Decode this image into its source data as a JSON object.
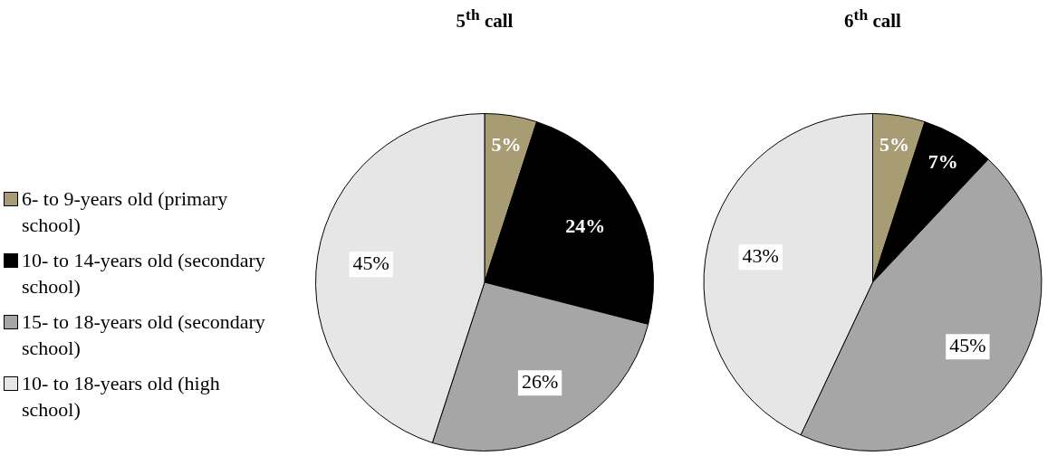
{
  "chart_data": [
    {
      "type": "pie",
      "title": "5$^{th}$ call",
      "legend": "left",
      "categories": [
        "6- to 9-years old (primary school)",
        "10- to 14-years old (secondary school)",
        "15- to 18-years old (secondary school)",
        "10- to 18-years old (high school)"
      ],
      "values": [
        5,
        24,
        26,
        45
      ],
      "value_labels": [
        "5%",
        "24%",
        "26%",
        "45%"
      ],
      "colors": [
        "#a89c74",
        "#000000",
        "#a6a6a6",
        "#e6e6e6"
      ]
    },
    {
      "type": "pie",
      "title": "6$^{th}$ call",
      "categories": [
        null,
        null,
        null,
        null
      ],
      "values": [
        5,
        7,
        45,
        43
      ],
      "value_labels": [
        "5%",
        "7%",
        "45%",
        "43%"
      ],
      "colors": [
        "#a89c74",
        "#000000",
        "#a6a6a6",
        "#e6e6e6"
      ]
    }
  ]
}
